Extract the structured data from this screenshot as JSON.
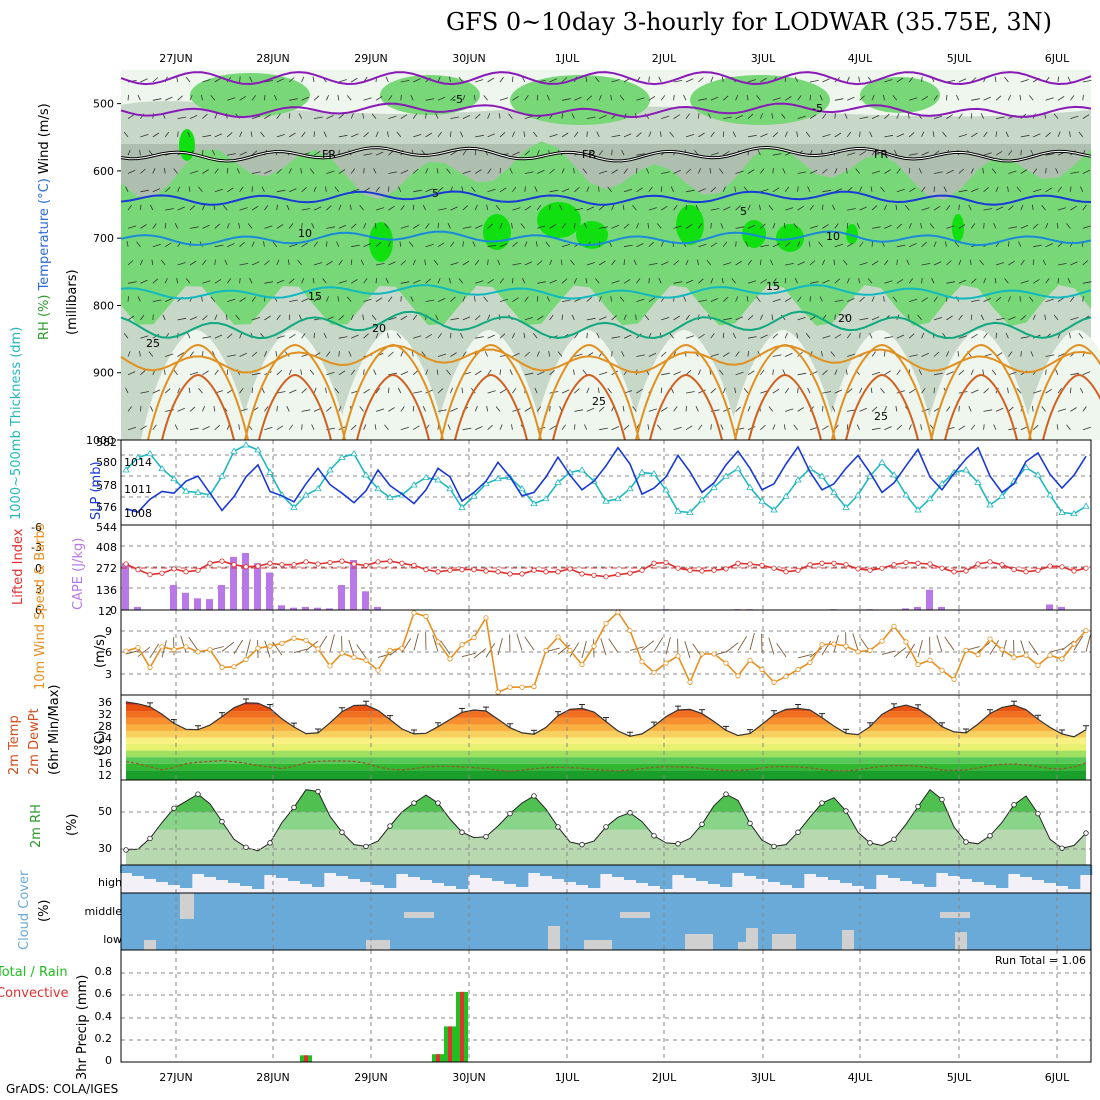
{
  "title": "GFS 0~10day 3-hourly for LODWAR (35.75E, 3N)",
  "credit": "GrADS: COLA/IGES",
  "colors": {
    "rh_light": "#eef6ee",
    "rh_mid": "#c8d8c8",
    "rh_dark": "#9aab9a",
    "rh_green": "#78d878",
    "rh_bright": "#10e010",
    "temp_purple": "#8a1ab8",
    "temp_blue": "#1a3ad8",
    "temp_lblue": "#1a8ad8",
    "temp_cyan": "#10b8c0",
    "temp_teal": "#10a880",
    "temp_orange": "#e09020",
    "temp_dorange": "#d06020",
    "slp": "#1a3ad8",
    "thickness": "#20b8c0",
    "lifted": "#e03030",
    "cape": "#b878e8",
    "wind_speed": "#e89020",
    "barb": "#7a5a3a",
    "cloud": "#6aaad8",
    "cloud_gray": "#d0d0d0",
    "precip_total": "#20c020",
    "precip_conv": "#e03030",
    "rh2m": "#50c050"
  },
  "chart_data": [
    {
      "panel": "upper-air",
      "type": "heatmap",
      "x_dates": [
        "27JUN",
        "28JUN",
        "29JUN",
        "30JUN",
        "1JUL",
        "2JUL",
        "3JUL",
        "4JUL",
        "5JUL",
        "6JUL"
      ],
      "ylabel": "(millibars)",
      "y_ticks": [
        500,
        600,
        700,
        800,
        900,
        1000
      ],
      "side_labels": [
        "Wind (m/s)",
        "Temperature (°C)",
        "RH (%)"
      ],
      "isotherm_labels": [
        "-5",
        "FR",
        "5",
        "10",
        "15",
        "20",
        "25"
      ],
      "isotherms": [
        {
          "name": "-5",
          "level_mb": 510
        },
        {
          "name": "FR",
          "level_mb": 575
        },
        {
          "name": "5",
          "level_mb": 640
        },
        {
          "name": "10",
          "level_mb": 700
        },
        {
          "name": "15",
          "level_mb": 780
        },
        {
          "name": "20",
          "level_mb": 830
        },
        {
          "name": "25",
          "level_mb": 880
        }
      ]
    },
    {
      "panel": "slp-thickness",
      "type": "line",
      "left_label": "1000~500mb Thickness (dm)",
      "right_label": "SLP (mb)",
      "left_ticks": [
        576,
        578,
        580,
        582
      ],
      "right_ticks": [
        1008,
        1011,
        1014
      ],
      "series": [
        {
          "name": "SLP",
          "values": [
            1008.4,
            1008,
            1009.5,
            1010.4,
            1010.2,
            1011.6,
            1012.2,
            1010.2,
            1008.2,
            1009.8,
            1012.1,
            1013.5,
            1010.4,
            1009.9,
            1009.2,
            1011.3,
            1013.1,
            1011.2,
            1010.2,
            1009.1,
            1010.5,
            1012.9,
            1011.1,
            1010.1,
            1009.0,
            1010.6,
            1013.1,
            1012.1,
            1009.3,
            1010.3,
            1011.6,
            1013.8,
            1012.1,
            1009.9,
            1010.3,
            1012.1,
            1014.4,
            1012.3,
            1010.6,
            1011.6,
            1013.4,
            1015.5,
            1013.6,
            1010.1,
            1010.8,
            1012.1,
            1014.6,
            1012.7,
            1010.3,
            1011.4,
            1013.5,
            1015.1,
            1013.1,
            1010.6,
            1011.3,
            1013.6,
            1015.6,
            1012.7,
            1010.6,
            1011.3,
            1013.1,
            1014.6,
            1012.6,
            1010.3,
            1011.4,
            1013.4,
            1015.3,
            1012.1,
            1010.6,
            1012.5,
            1014.2,
            1015.5,
            1012.2,
            1010.3,
            1011.3,
            1013.9,
            1014.9,
            1012.4,
            1010.8,
            1012.3,
            1014.5
          ]
        },
        {
          "name": "Thickness",
          "values": [
            579.6,
            580.6,
            580.9,
            579.7,
            578.9,
            577.9,
            577.8,
            577.6,
            579.1,
            581.1,
            581.6,
            581.2,
            579.4,
            577.6,
            576.6,
            577.6,
            578.1,
            579.6,
            580.6,
            580.9,
            579.2,
            578.1,
            577.4,
            577.6,
            578.4,
            579.0,
            578.8,
            578.1,
            576.6,
            577.5,
            578.5,
            578.9,
            579.0,
            578.1,
            576.9,
            577.3,
            578.6,
            579.4,
            579.6,
            578.7,
            577.1,
            577.3,
            578.1,
            579.4,
            579.3,
            578.0,
            576.3,
            576.2,
            577.2,
            578.2,
            579.1,
            579.7,
            578.2,
            577.1,
            576.4,
            577.5,
            578.8,
            579.7,
            579.1,
            577.8,
            576.6,
            577.6,
            579.1,
            580.2,
            579.2,
            577.6,
            576.4,
            577.3,
            578.5,
            579.4,
            579.6,
            578.6,
            576.8,
            577.5,
            578.7,
            579.8,
            579.2,
            577.6,
            576.2,
            576.1,
            576.7
          ]
        }
      ]
    },
    {
      "panel": "lifted-cape",
      "type": "bar",
      "left_label": "Lifted Index",
      "right_label": "CAPE (J/kg)",
      "left_ticks": [
        "-3",
        "0",
        "3",
        "6"
      ],
      "left_top": "-6",
      "right_ticks": [
        136,
        272,
        408,
        544
      ],
      "right_bottom": "0",
      "cape_values": [
        300,
        20,
        0,
        0,
        160,
        110,
        75,
        70,
        160,
        340,
        365,
        300,
        240,
        30,
        15,
        20,
        15,
        10,
        160,
        320,
        120,
        20,
        0,
        0,
        0,
        0,
        0,
        0,
        0,
        0,
        0,
        0,
        0,
        0,
        0,
        0,
        0,
        0,
        0,
        0,
        0,
        0,
        0,
        0,
        0,
        5,
        0,
        0,
        0,
        0,
        0,
        5,
        5,
        0,
        0,
        0,
        0,
        0,
        0,
        5,
        0,
        0,
        5,
        0,
        0,
        10,
        20,
        130,
        20,
        0,
        0,
        0,
        0,
        0,
        0,
        0,
        0,
        35,
        20,
        0,
        0
      ],
      "lifted_values": [
        -0.5,
        0.3,
        1,
        0.8,
        0.2,
        0.6,
        0.4,
        -0.6,
        -0.9,
        -0.4,
        -0.1,
        -0.2,
        -0.6,
        -0.4,
        -0.4,
        -0.8,
        -0.5,
        -0.7,
        -0.9,
        -0.5,
        -0.3,
        -0.8,
        -0.9,
        -0.6,
        -0.3,
        0.3,
        0.6,
        0.4,
        0.3,
        0.3,
        0.5,
        0.6,
        0.9,
        0.9,
        0.4,
        0.6,
        0.6,
        0.2,
        0.9,
        1.1,
        1.3,
        1.0,
        0.8,
        0.4,
        -0.6,
        -0.7,
        0.1,
        0.4,
        0.5,
        0.4,
        0.2,
        -0.6,
        -0.5,
        -0.3,
        0.1,
        0.6,
        0.4,
        -0.4,
        -0.6,
        -0.6,
        -0.4,
        0.2,
        0.4,
        0.1,
        -0.4,
        -0.7,
        -0.6,
        -0.5,
        0.1,
        0.6,
        0.5,
        -0.5,
        -0.8,
        -0.4,
        0.3,
        0.6,
        0.4,
        -0.2,
        -0.1,
        0.5,
        0.1
      ]
    },
    {
      "panel": "wind10m",
      "type": "line",
      "left_label": "10m Wind Speed & Barbs",
      "unit": "(m/s)",
      "y_ticks": [
        3,
        6,
        9,
        12
      ],
      "series": [
        {
          "name": "Speed",
          "values": [
            6.2,
            6.7,
            3.9,
            6.8,
            6.4,
            6.8,
            6.1,
            6.4,
            3.9,
            4.0,
            5.0,
            6.6,
            6.9,
            7.3,
            8.0,
            7.7,
            6.5,
            4.1,
            5.9,
            5.3,
            4.9,
            3.5,
            6.3,
            6.6,
            11.6,
            11.1,
            7.5,
            5.1,
            7.1,
            8.1,
            10.9,
            0.4,
            1.1,
            1.1,
            1.2,
            6.3,
            8.2,
            6.3,
            4.3,
            6.9,
            10.1,
            11.7,
            9.1,
            4.7,
            3.2,
            4.5,
            5.5,
            1.8,
            5.8,
            5.8,
            4.5,
            2.7,
            4.9,
            3.6,
            1.8,
            2.6,
            3.6,
            4.6,
            7.1,
            7.2,
            6.9,
            6.1,
            6.3,
            7.6,
            9.7,
            7.5,
            4.3,
            4.9,
            3.5,
            2.2,
            6.3,
            5.7,
            7.9,
            6.4,
            5.3,
            5.6,
            4.2,
            5.6,
            5.1,
            7.2,
            9.1
          ]
        }
      ]
    },
    {
      "panel": "temp2m",
      "type": "area",
      "left_label": "2m Temp 2m DewPt (6hr Min/Max)",
      "unit": "(°C)",
      "y_ticks": [
        12,
        16,
        20,
        24,
        28,
        32,
        36
      ],
      "temp_values": [
        34.9,
        34.3,
        33.4,
        31.1,
        28.3,
        26.5,
        26.4,
        27.8,
        30.4,
        33.1,
        34.6,
        34.5,
        32.9,
        29.7,
        27.2,
        25.2,
        25.4,
        28.5,
        31.9,
        33.8,
        33.9,
        32.3,
        29.5,
        26.6,
        25.1,
        25.3,
        27.3,
        29.5,
        31.7,
        32.4,
        32.1,
        29.6,
        27.0,
        25.4,
        25.0,
        27.1,
        30.7,
        32.6,
        32.9,
        31.8,
        28.9,
        26.0,
        24.4,
        25.1,
        27.5,
        30.4,
        32.4,
        32.6,
        31.3,
        28.9,
        26.2,
        24.6,
        25.2,
        28.0,
        31.0,
        32.6,
        32.9,
        32.4,
        30.1,
        27.5,
        25.3,
        24.9,
        27.3,
        31.1,
        33.1,
        33.9,
        32.8,
        30.4,
        27.3,
        25.7,
        25.4,
        28.1,
        31.3,
        33.2,
        33.9,
        32.5,
        29.6,
        27.1,
        25.1,
        24.2,
        26.4
      ],
      "dew_values": [
        16.6,
        16.0,
        15.0,
        14.1,
        14.8,
        16.0,
        16.4,
        16.7,
        16.9,
        16.6,
        16.1,
        15.4,
        15.0,
        14.5,
        15.2,
        16.3,
        16.7,
        16.8,
        16.8,
        16.7,
        16.1,
        15.0,
        14.3,
        14.1,
        14.5,
        15.0,
        15.2,
        15.2,
        15.0,
        14.8,
        14.5,
        14.0,
        13.7,
        14.0,
        14.5,
        14.8,
        14.9,
        14.8,
        14.6,
        14.2,
        14.0,
        13.8,
        14.0,
        14.5,
        14.9,
        15.1,
        15.0,
        14.9,
        14.6,
        14.2,
        13.9,
        13.9,
        14.2,
        14.7,
        15.1,
        15.1,
        15.0,
        14.7,
        14.2,
        13.8,
        13.8,
        14.1,
        14.7,
        15.2,
        15.4,
        15.4,
        15.2,
        14.7,
        14.1,
        13.9,
        14.1,
        14.7,
        15.4,
        15.8,
        15.9,
        15.6,
        15.1,
        14.5,
        14.4,
        15.0,
        16.2
      ]
    },
    {
      "panel": "rh2m",
      "type": "area",
      "left_label": "2m RH",
      "unit": "(%)",
      "y_ticks": [
        30,
        50
      ],
      "series": [
        {
          "name": "2m RH",
          "values": [
            28.5,
            29.0,
            35.0,
            44.0,
            52.0,
            56.0,
            60.0,
            54.5,
            44.5,
            34.5,
            30.0,
            28.0,
            32.5,
            44.0,
            52.5,
            62.5,
            61.5,
            47.5,
            38.5,
            31.5,
            30.5,
            33.5,
            42.0,
            50.0,
            55.0,
            59.5,
            55.0,
            46.0,
            38.5,
            35.5,
            36.0,
            42.0,
            49.0,
            55.0,
            59.0,
            51.5,
            41.5,
            33.0,
            31.5,
            33.5,
            41.5,
            47.0,
            49.5,
            44.5,
            36.5,
            32.5,
            32.0,
            35.0,
            43.0,
            53.5,
            60.0,
            56.5,
            43.5,
            34.0,
            30.5,
            31.5,
            38.5,
            47.0,
            55.0,
            58.0,
            50.5,
            38.5,
            32.5,
            31.0,
            34.5,
            43.0,
            53.0,
            62.5,
            57.0,
            41.5,
            33.0,
            32.0,
            36.5,
            44.0,
            54.0,
            59.0,
            49.0,
            34.5,
            29.5,
            31.0,
            38.0
          ]
        }
      ]
    },
    {
      "panel": "cloud",
      "type": "bar",
      "left_label": "Cloud Cover",
      "unit": "(%)",
      "layers": [
        "high",
        "middle",
        "low"
      ]
    },
    {
      "panel": "precip",
      "type": "bar",
      "left_label": "Total / Rain Convective",
      "unit": "3hr Precip (mm)",
      "run_total": "Run Total = 1.06",
      "y_ticks": [
        "0",
        "0.2",
        "0.4",
        "0.6",
        "0.8"
      ],
      "precip_values": [
        0,
        0,
        0,
        0,
        0,
        0,
        0,
        0,
        0,
        0,
        0,
        0,
        0,
        0,
        0,
        0.06,
        0,
        0,
        0,
        0,
        0,
        0,
        0,
        0,
        0,
        0,
        0.07,
        0.32,
        0.63,
        0,
        0,
        0,
        0,
        0,
        0,
        0,
        0,
        0,
        0,
        0,
        0,
        0,
        0,
        0,
        0,
        0,
        0,
        0,
        0,
        0,
        0,
        0,
        0,
        0,
        0,
        0,
        0,
        0,
        0,
        0,
        0,
        0,
        0,
        0,
        0,
        0,
        0,
        0,
        0,
        0,
        0,
        0,
        0,
        0,
        0,
        0,
        0,
        0,
        0,
        0,
        0
      ]
    }
  ]
}
